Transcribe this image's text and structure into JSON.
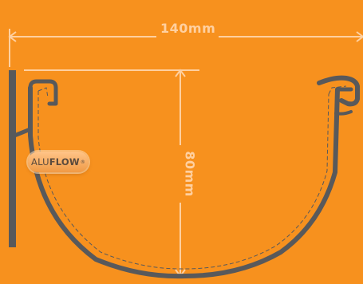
{
  "dimensions": {
    "width_label": "140mm",
    "height_label": "80mm"
  },
  "brand": {
    "prefix": "ALU",
    "suffix": "FLOW",
    "mark": "®"
  },
  "colors": {
    "background": "#f7911e",
    "profile": "#58595b",
    "dimension_lines": "#ffd0a0",
    "dashed_inner": "#58595b"
  }
}
